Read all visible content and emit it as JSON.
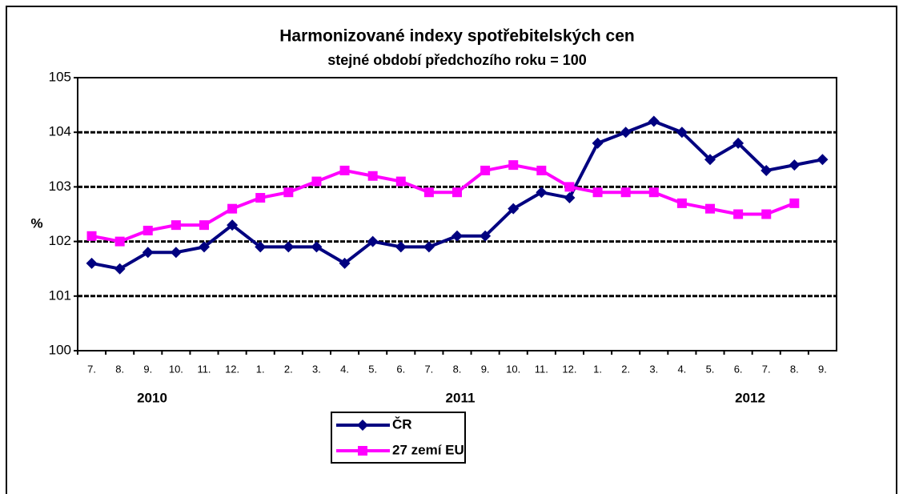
{
  "chart_data": {
    "type": "line",
    "title": "Harmonizované indexy spotřebitelských cen",
    "subtitle": "stejné období předchozího roku = 100",
    "y_label": "%",
    "categories": [
      "7.",
      "8.",
      "9.",
      "10.",
      "11.",
      "12.",
      "1.",
      "2.",
      "3.",
      "4.",
      "5.",
      "6.",
      "7.",
      "8.",
      "9.",
      "10.",
      "11.",
      "12.",
      "1.",
      "2.",
      "3.",
      "4.",
      "5.",
      "6.",
      "7.",
      "8.",
      "9."
    ],
    "year_labels": [
      "2010",
      "2011",
      "2012"
    ],
    "series": [
      {
        "name": "ČR",
        "color": "#000080",
        "marker": "diamond",
        "values": [
          101.6,
          101.5,
          101.8,
          101.8,
          101.9,
          102.3,
          101.9,
          101.9,
          101.9,
          101.6,
          102.0,
          101.9,
          101.9,
          102.1,
          102.1,
          102.6,
          102.9,
          102.8,
          103.8,
          104.0,
          104.2,
          104.0,
          103.5,
          103.8,
          103.3,
          103.4,
          103.5
        ]
      },
      {
        "name": "27 zemí EU",
        "color": "#ff00ff",
        "marker": "square",
        "values": [
          102.1,
          102.0,
          102.2,
          102.3,
          102.3,
          102.6,
          102.8,
          102.9,
          103.1,
          103.3,
          103.2,
          103.1,
          102.9,
          102.9,
          103.3,
          103.4,
          103.3,
          103.0,
          102.9,
          102.9,
          102.9,
          102.7,
          102.6,
          102.5,
          102.5,
          102.7,
          null
        ]
      }
    ],
    "ylim": [
      100,
      105
    ],
    "yticks": [
      100,
      101,
      102,
      103,
      104,
      105
    ],
    "grid": true
  }
}
